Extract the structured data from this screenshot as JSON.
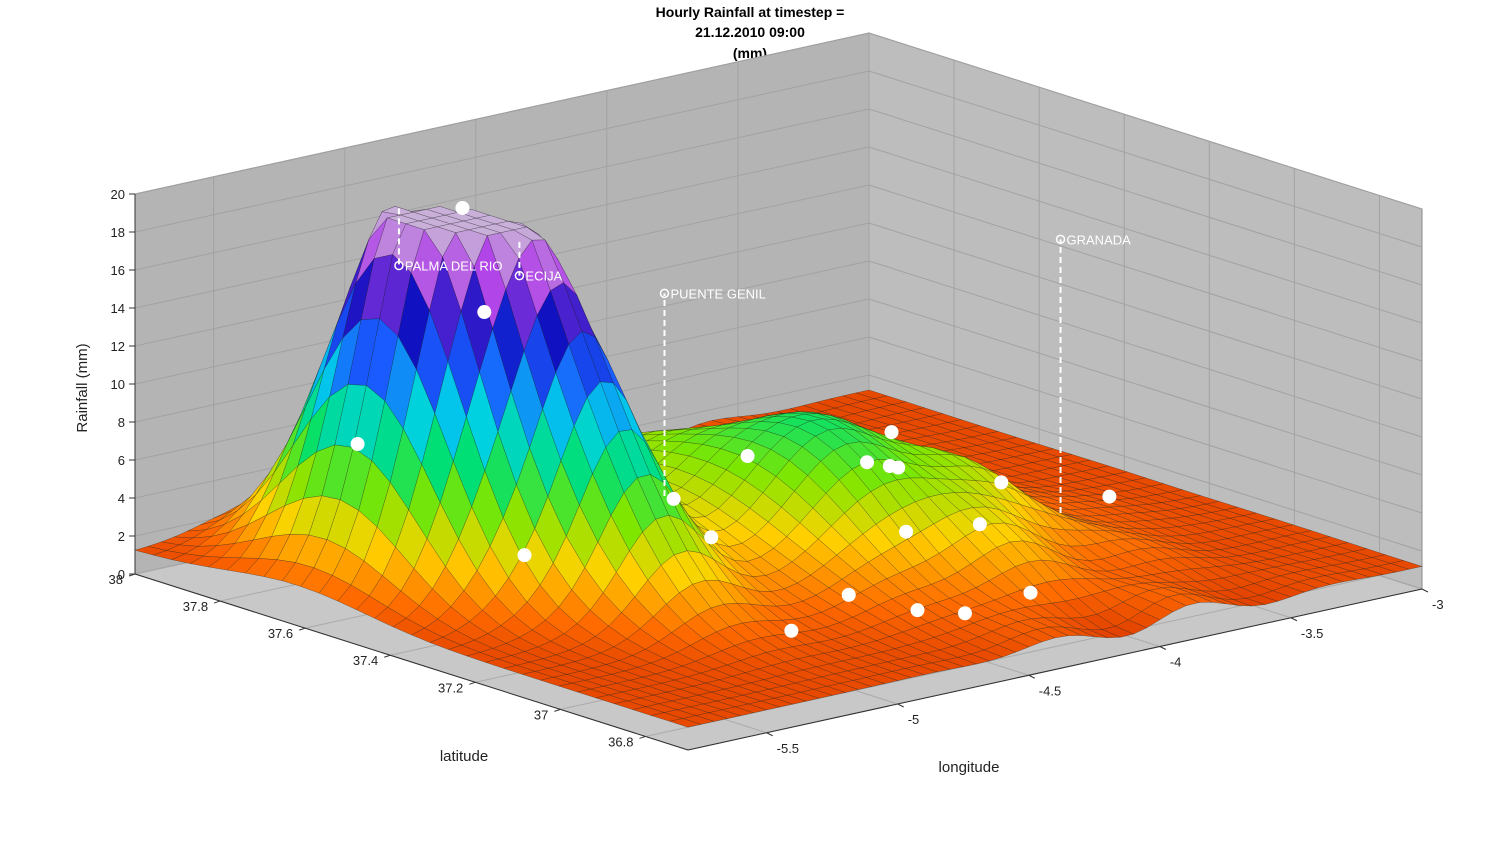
{
  "chart_data": {
    "type": "surface",
    "title_lines": [
      "Hourly Rainfall at timestep =",
      "21.12.2010 09:00",
      "(mm)"
    ],
    "xlabel": "longitude",
    "ylabel": "latitude",
    "zlabel": "Rainfall (mm)",
    "xlim": [
      -5.8,
      -3
    ],
    "ylim": [
      36.7,
      38
    ],
    "zlim": [
      0,
      20
    ],
    "x_ticks": [
      "-5.5",
      "-5",
      "-4.5",
      "-4",
      "-3.5",
      "-3"
    ],
    "x_tick_values": [
      -5.5,
      -5,
      -4.5,
      -4,
      -3.5,
      -3
    ],
    "y_ticks": [
      "38",
      "37.8",
      "37.6",
      "37.4",
      "37.2",
      "37",
      "36.8"
    ],
    "y_tick_values": [
      38,
      37.8,
      37.6,
      37.4,
      37.2,
      37,
      36.8
    ],
    "z_ticks": [
      "0",
      "2",
      "4",
      "6",
      "8",
      "10",
      "12",
      "14",
      "16",
      "18",
      "20"
    ],
    "z_tick_values": [
      0,
      2,
      4,
      6,
      8,
      10,
      12,
      14,
      16,
      18,
      20
    ],
    "grid": true,
    "colormap": "jet-reversed",
    "colormap_stops": [
      "#cc2200",
      "#ff6a00",
      "#ffd200",
      "#7fe600",
      "#00e070",
      "#00d0e8",
      "#1a5cff",
      "#1010c0",
      "#b040e8",
      "#c8b0d8"
    ],
    "peaks": [
      {
        "lon": -5.36,
        "lat": 37.62,
        "rain": 19.5
      },
      {
        "lon": -5.12,
        "lat": 37.45,
        "rain": 16.0
      },
      {
        "lon": -4.15,
        "lat": 37.25,
        "rain": 6.2
      },
      {
        "lon": -4.45,
        "lat": 37.4,
        "rain": 4.0
      },
      {
        "lon": -4.6,
        "lat": 37.7,
        "rain": 3.0
      }
    ],
    "background_rain_mm": 1.2,
    "stations": [
      {
        "name": "PALMA DEL RIO",
        "lon": -5.28,
        "lat": 37.7,
        "height": 16.8
      },
      {
        "name": "ECIJA",
        "lon": -5.08,
        "lat": 37.54,
        "height": 16.8
      },
      {
        "name": "PUENTE GENIL",
        "lon": -4.77,
        "lat": 37.39,
        "height": 16.0
      },
      {
        "name": "GRANADA",
        "lon": -3.6,
        "lat": 37.18,
        "height": 16.8
      }
    ],
    "markers": [
      {
        "lon": -5.36,
        "lat": 37.45
      },
      {
        "lon": -5.2,
        "lat": 37.6
      },
      {
        "lon": -5.45,
        "lat": 37.3
      },
      {
        "lon": -4.9,
        "lat": 37.2
      },
      {
        "lon": -4.7,
        "lat": 37.0
      },
      {
        "lon": -4.6,
        "lat": 36.9
      },
      {
        "lon": -4.4,
        "lat": 37.05
      },
      {
        "lon": -4.3,
        "lat": 37.15
      },
      {
        "lon": -4.2,
        "lat": 37.0
      },
      {
        "lon": -4.05,
        "lat": 37.3
      },
      {
        "lon": -3.9,
        "lat": 37.45
      },
      {
        "lon": -3.7,
        "lat": 37.5
      },
      {
        "lon": -3.3,
        "lat": 37.25
      },
      {
        "lon": -5.0,
        "lat": 36.95
      },
      {
        "lon": -4.5,
        "lat": 36.85
      },
      {
        "lon": -4.8,
        "lat": 37.35
      },
      {
        "lon": -3.95,
        "lat": 37.7
      },
      {
        "lon": -5.6,
        "lat": 37.6
      },
      {
        "lon": -4.25,
        "lat": 36.85
      },
      {
        "lon": -3.55,
        "lat": 37.35
      }
    ]
  }
}
